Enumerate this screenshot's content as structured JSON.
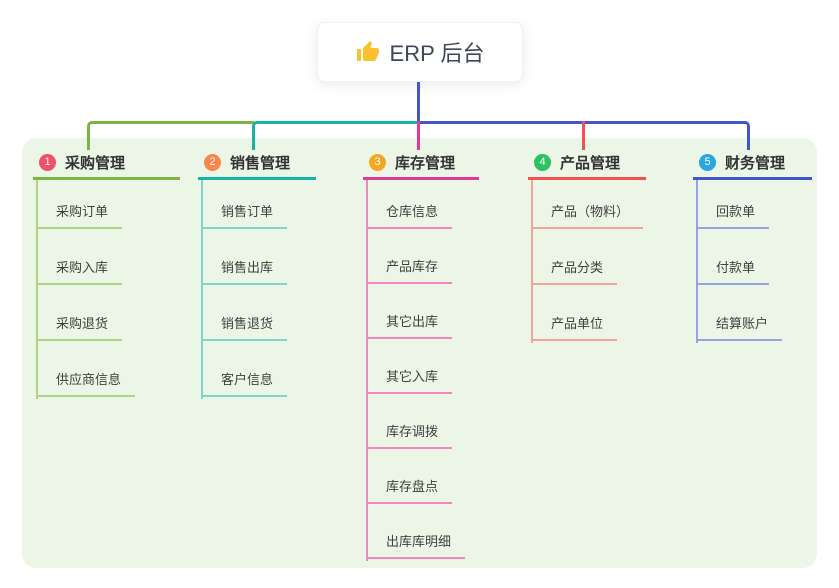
{
  "root": {
    "title": "ERP 后台",
    "icon": "thumbs-up-icon",
    "icon_color": "#fbc02d",
    "box_bg": "#ffffff",
    "text_color": "#3d4757"
  },
  "panel_bg": "#ecf6e7",
  "connector_root_color": "#4356c7",
  "branches": [
    {
      "key": "purchase-management",
      "num": "1",
      "label": "采购管理",
      "badge_color": "#f0506a",
      "line_color": "#7cb342",
      "sub_color": "#abd584",
      "items": [
        "采购订单",
        "采购入库",
        "采购退货",
        "供应商信息"
      ]
    },
    {
      "key": "sales-management",
      "num": "2",
      "label": "销售管理",
      "badge_color": "#f9854f",
      "line_color": "#17b3a6",
      "sub_color": "#82d4cb",
      "items": [
        "销售订单",
        "销售出库",
        "销售退货",
        "客户信息"
      ]
    },
    {
      "key": "inventory-management",
      "num": "3",
      "label": "库存管理",
      "badge_color": "#f5a623",
      "line_color": "#dd3a9a",
      "sub_color": "#f287c0",
      "items": [
        "仓库信息",
        "产品库存",
        "其它出库",
        "其它入库",
        "库存调拨",
        "库存盘点",
        "出库库明细"
      ]
    },
    {
      "key": "product-management",
      "num": "4",
      "label": "产品管理",
      "badge_color": "#2ec163",
      "line_color": "#f15350",
      "sub_color": "#f7a19f",
      "items": [
        "产品（物料）",
        "产品分类",
        "产品单位"
      ]
    },
    {
      "key": "finance-management",
      "num": "5",
      "label": "财务管理",
      "badge_color": "#29a7e0",
      "line_color": "#4356c7",
      "sub_color": "#97a3e0",
      "items": [
        "回款单",
        "付款单",
        "结算账户"
      ]
    }
  ]
}
